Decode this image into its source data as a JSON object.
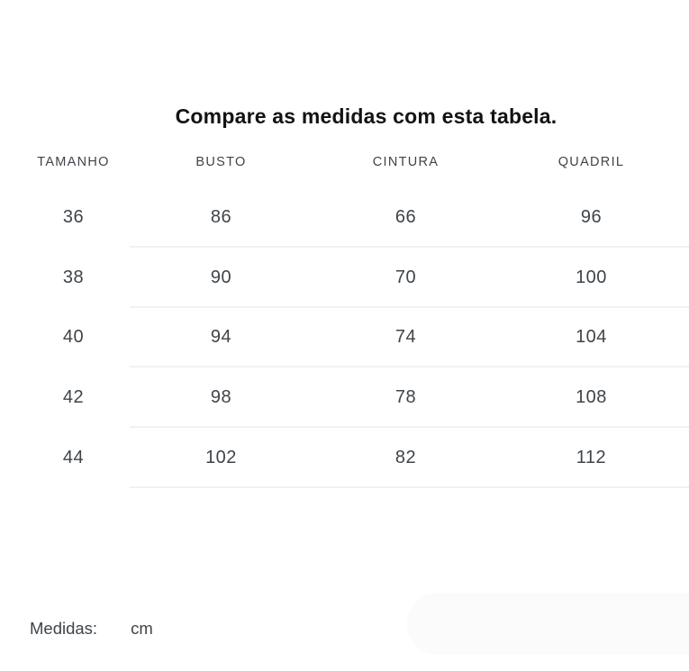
{
  "chart_data": {
    "type": "table",
    "title": "Compare as medidas com esta tabela.",
    "columns": [
      "TAMANHO",
      "BUSTO",
      "CINTURA",
      "QUADRIL"
    ],
    "rows": [
      [
        36,
        86,
        66,
        96
      ],
      [
        38,
        90,
        70,
        100
      ],
      [
        40,
        94,
        74,
        104
      ],
      [
        42,
        98,
        78,
        108
      ],
      [
        44,
        102,
        82,
        112
      ]
    ],
    "unit": "cm",
    "layout_hints": {
      "row_dividers": true,
      "divider_color": "#f1f1f1",
      "text_color": "#3f4449",
      "title_color": "#131313",
      "background": "#ffffff"
    }
  },
  "footer": {
    "label": "Medidas:",
    "unit": "cm"
  }
}
